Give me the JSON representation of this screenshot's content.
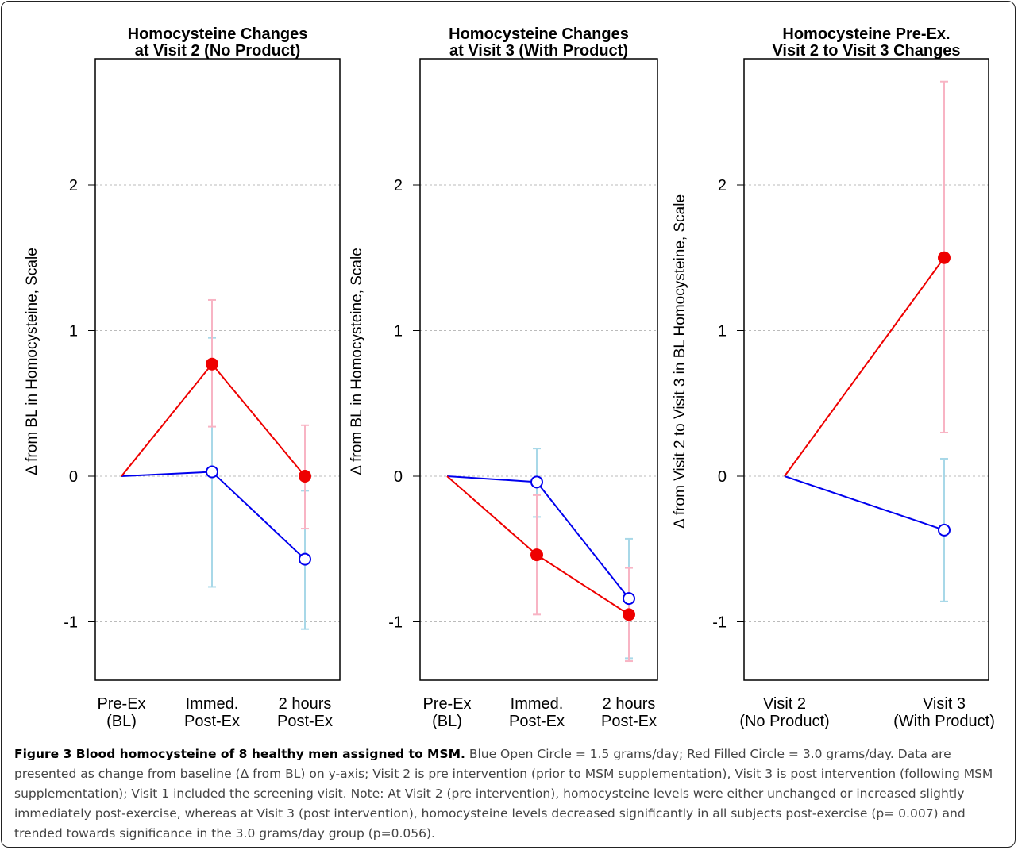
{
  "y_ticks": [
    2,
    1,
    0,
    -1
  ],
  "tick_labels": [
    "2",
    "1",
    "0",
    "-1"
  ],
  "colors": {
    "blue": "#0000ee",
    "red": "#ee0000",
    "blue_err": "#a8d8e8",
    "red_err": "#f8b4c4",
    "grid": "#bbbbbb"
  },
  "chart_data": [
    {
      "type": "line",
      "title": [
        "Homocysteine Changes",
        "at Visit 2 (No Product)"
      ],
      "ylabel": "Δ from BL in Homocysteine, Scale",
      "categories": [
        [
          "Pre-Ex",
          "(BL)"
        ],
        [
          "Immed.",
          "Post-Ex"
        ],
        [
          "2 hours",
          "Post-Ex"
        ]
      ],
      "ylim": [
        -1.45,
        2.9
      ],
      "grid": true,
      "series": [
        {
          "marker": "open-circle",
          "color": "blue",
          "values": [
            0,
            0.03,
            -0.57
          ],
          "err_low": [
            null,
            -0.76,
            -1.05
          ],
          "err_high": [
            null,
            0.95,
            -0.1
          ]
        },
        {
          "marker": "filled-circle",
          "color": "red",
          "values": [
            0,
            0.77,
            0.0
          ],
          "err_low": [
            null,
            0.34,
            -0.36
          ],
          "err_high": [
            null,
            1.21,
            0.35
          ]
        }
      ]
    },
    {
      "type": "line",
      "title": [
        "Homocysteine Changes",
        "at Visit 3 (With Product)"
      ],
      "ylabel": "Δ from BL in Homocysteine, Scale",
      "categories": [
        [
          "Pre-Ex",
          "(BL)"
        ],
        [
          "Immed.",
          "Post-Ex"
        ],
        [
          "2 hours",
          "Post-Ex"
        ]
      ],
      "ylim": [
        -1.45,
        2.9
      ],
      "grid": true,
      "series": [
        {
          "marker": "open-circle",
          "color": "blue",
          "values": [
            0,
            -0.04,
            -0.84
          ],
          "err_low": [
            null,
            -0.28,
            -1.25
          ],
          "err_high": [
            null,
            0.19,
            -0.43
          ]
        },
        {
          "marker": "filled-circle",
          "color": "red",
          "values": [
            0,
            -0.54,
            -0.95
          ],
          "err_low": [
            null,
            -0.95,
            -1.27
          ],
          "err_high": [
            null,
            -0.13,
            -0.63
          ]
        }
      ]
    },
    {
      "type": "line",
      "title": [
        "Homocysteine Pre-Ex.",
        "Visit 2 to Visit 3 Changes"
      ],
      "ylabel": "Δ from Visit 2 to Visit 3 in BL Homocysteine, Scale",
      "categories": [
        [
          "Visit 2",
          "(No Product)"
        ],
        [
          "Visit 3",
          "(With Product)"
        ]
      ],
      "ylim": [
        -1.45,
        2.9
      ],
      "grid": true,
      "series": [
        {
          "marker": "open-circle",
          "color": "blue",
          "values": [
            0,
            -0.37
          ],
          "err_low": [
            null,
            -0.86
          ],
          "err_high": [
            null,
            0.12
          ]
        },
        {
          "marker": "filled-circle",
          "color": "red",
          "values": [
            0,
            1.5
          ],
          "err_low": [
            null,
            0.3
          ],
          "err_high": [
            null,
            2.71
          ]
        }
      ]
    }
  ],
  "caption": {
    "bold": "Figure 3 Blood homocysteine of 8 healthy men assigned to MSM.",
    "text": " Blue Open Circle = 1.5 grams/day; Red Filled Circle = 3.0 grams/day. Data are presented as change from baseline (Δ from BL) on y-axis; Visit 2 is pre intervention (prior to MSM supplementation), Visit 3 is post intervention (following MSM supplementation); Visit 1 included the screening visit. Note: At Visit 2 (pre intervention), homocysteine levels were either unchanged or increased slightly immediately post-exercise, whereas at Visit 3 (post intervention), homocysteine levels decreased significantly in all subjects post-exercise (p= 0.007) and trended towards significance in the 3.0 grams/day group (p=0.056)."
  }
}
